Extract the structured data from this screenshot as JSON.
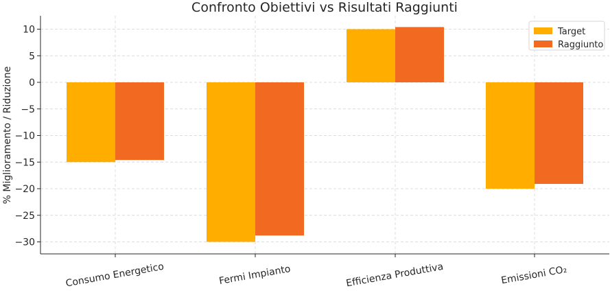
{
  "chart_data": {
    "type": "bar",
    "title": "Confronto Obiettivi vs Risultati Raggiunti",
    "xlabel": "",
    "ylabel": "% Miglioramento / Riduzione",
    "categories": [
      "Consumo Energetico",
      "Fermi Impianto",
      "Efficienza Produttiva",
      "Emissioni CO₂"
    ],
    "series": [
      {
        "name": "Target",
        "values": [
          -15,
          -30,
          10,
          -20
        ],
        "color": "#FFAE00"
      },
      {
        "name": "Raggiunto",
        "values": [
          -14.6,
          -28.8,
          10.4,
          -19.1
        ],
        "color": "#F26A21"
      }
    ],
    "ylim": [
      -32,
      12
    ],
    "yticks": [
      10,
      5,
      0,
      -5,
      -10,
      -15,
      -20,
      -25,
      -30
    ],
    "ytick_labels": [
      "10",
      "5",
      "0",
      "−5",
      "−10",
      "−15",
      "−20",
      "−25",
      "−30"
    ],
    "grid": true,
    "legend_position": "top-right"
  }
}
